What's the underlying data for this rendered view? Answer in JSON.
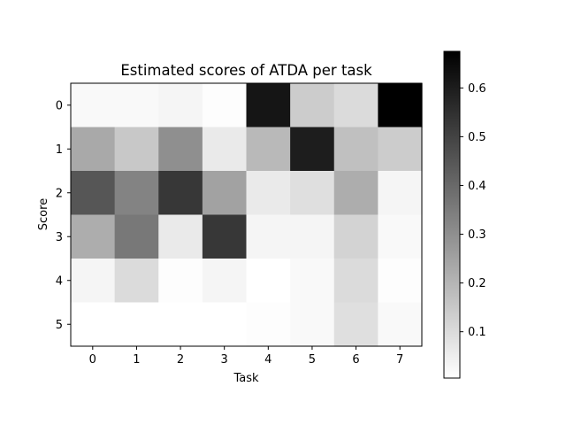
{
  "chart_data": {
    "type": "heatmap",
    "title": "Estimated scores of ATDA per task",
    "xlabel": "Task",
    "ylabel": "Score",
    "x_categories": [
      "0",
      "1",
      "2",
      "3",
      "4",
      "5",
      "6",
      "7"
    ],
    "y_categories": [
      "0",
      "1",
      "2",
      "3",
      "4",
      "5"
    ],
    "values": [
      [
        0.02,
        0.02,
        0.03,
        0.01,
        0.62,
        0.14,
        0.1,
        0.68
      ],
      [
        0.23,
        0.15,
        0.3,
        0.06,
        0.19,
        0.6,
        0.17,
        0.14
      ],
      [
        0.45,
        0.33,
        0.53,
        0.25,
        0.06,
        0.09,
        0.22,
        0.03
      ],
      [
        0.22,
        0.36,
        0.06,
        0.53,
        0.03,
        0.03,
        0.12,
        0.02
      ],
      [
        0.03,
        0.1,
        0.01,
        0.03,
        0.0,
        0.02,
        0.1,
        0.01
      ],
      [
        0.0,
        0.0,
        0.0,
        0.0,
        0.01,
        0.02,
        0.09,
        0.02
      ]
    ],
    "colormap": "Greys",
    "vmin": 0.005,
    "vmax": 0.675,
    "colorbar_ticks": [
      "0.1",
      "0.2",
      "0.3",
      "0.4",
      "0.5",
      "0.6"
    ],
    "colorbar_tick_values": [
      0.1,
      0.2,
      0.3,
      0.4,
      0.5,
      0.6
    ],
    "grid": false
  }
}
